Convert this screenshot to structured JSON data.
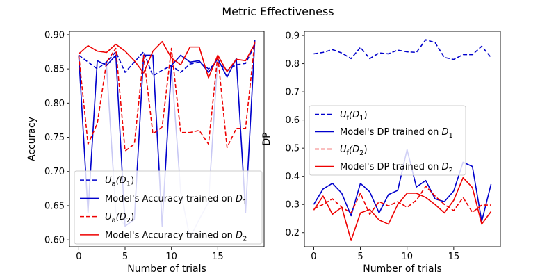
{
  "figure": {
    "title": "Metric Effectiveness"
  },
  "chart_data": [
    {
      "type": "line",
      "xlabel": "Number of trials",
      "ylabel": "Accuracy",
      "xlim": [
        -1,
        20
      ],
      "ylim": [
        0.59,
        0.905
      ],
      "xticks": [
        0,
        5,
        10,
        15
      ],
      "yticks": [
        0.6,
        0.65,
        0.7,
        0.75,
        0.8,
        0.85,
        0.9
      ],
      "ytick_decimals": 2,
      "x": [
        0,
        1,
        2,
        3,
        4,
        5,
        6,
        7,
        8,
        9,
        10,
        11,
        12,
        13,
        14,
        15,
        16,
        17,
        18,
        19
      ],
      "legend_position": "lower-right",
      "series": [
        {
          "name_main": "U",
          "name_sub": "a",
          "name_suffix": "(D",
          "name_suffix_sub": "1",
          "name_end": ")",
          "color": "#0000cc",
          "dash": true,
          "alpha": 1,
          "values": [
            0.87,
            0.86,
            0.85,
            0.86,
            0.875,
            0.845,
            0.86,
            0.875,
            0.84,
            0.848,
            0.855,
            0.845,
            0.857,
            0.86,
            0.85,
            0.86,
            0.848,
            0.856,
            0.858,
            0.885
          ]
        },
        {
          "name_main": "Model's Accuracy trained on ",
          "name_sub": "",
          "name_suffix": "D",
          "name_suffix_sub": "1",
          "name_end": "",
          "color": "#0000cc",
          "dash": false,
          "alpha": 1,
          "values": [
            0.87,
            0.64,
            0.862,
            0.855,
            0.87,
            0.62,
            0.63,
            0.87,
            0.87,
            0.62,
            0.855,
            0.87,
            0.86,
            0.862,
            0.845,
            0.865,
            0.838,
            0.865,
            0.64,
            0.892
          ]
        },
        {
          "name_main": "",
          "name_sub": "",
          "name_suffix": "",
          "name_suffix_sub": "",
          "name_end": "",
          "color": "#0000cc",
          "dash": false,
          "alpha": 0.22,
          "values": [
            0.87,
            0.64,
            0.862,
            0.855,
            0.64,
            0.62,
            0.63,
            0.87,
            0.87,
            0.63,
            0.855,
            0.67,
            0.603,
            0.63,
            0.655,
            0.865,
            0.838,
            0.865,
            0.643,
            0.892
          ]
        },
        {
          "name_main": "U",
          "name_sub": "a",
          "name_suffix": "(D",
          "name_suffix_sub": "2",
          "name_end": ")",
          "color": "#ee0000",
          "dash": true,
          "alpha": 1,
          "values": [
            0.87,
            0.74,
            0.77,
            0.86,
            0.88,
            0.73,
            0.74,
            0.87,
            0.755,
            0.765,
            0.88,
            0.757,
            0.757,
            0.76,
            0.74,
            0.87,
            0.735,
            0.763,
            0.763,
            0.89
          ]
        },
        {
          "name_main": "Model's Accuracy trained on ",
          "name_sub": "",
          "name_suffix": "D",
          "name_suffix_sub": "2",
          "name_end": "",
          "color": "#ee0000",
          "dash": false,
          "alpha": 1,
          "values": [
            0.872,
            0.884,
            0.876,
            0.874,
            0.886,
            0.876,
            0.862,
            0.844,
            0.876,
            0.89,
            0.866,
            0.856,
            0.882,
            0.882,
            0.837,
            0.87,
            0.846,
            0.864,
            0.862,
            0.887
          ]
        }
      ]
    },
    {
      "type": "line",
      "xlabel": "Number of trials",
      "ylabel": "DP",
      "xlim": [
        -1,
        20
      ],
      "ylim": [
        0.15,
        0.915
      ],
      "xticks": [
        0,
        5,
        10,
        15
      ],
      "yticks": [
        0.2,
        0.3,
        0.4,
        0.5,
        0.6,
        0.7,
        0.8,
        0.9
      ],
      "ytick_decimals": 1,
      "x": [
        0,
        1,
        2,
        3,
        4,
        5,
        6,
        7,
        8,
        9,
        10,
        11,
        12,
        13,
        14,
        15,
        16,
        17,
        18,
        19
      ],
      "legend_position": "center-left",
      "series": [
        {
          "name_main": "U",
          "name_sub": "f",
          "name_suffix": "(D",
          "name_suffix_sub": "1",
          "name_end": ")",
          "color": "#0000cc",
          "dash": true,
          "alpha": 1,
          "values": [
            0.835,
            0.84,
            0.85,
            0.838,
            0.818,
            0.858,
            0.818,
            0.838,
            0.835,
            0.848,
            0.842,
            0.84,
            0.885,
            0.875,
            0.822,
            0.815,
            0.832,
            0.832,
            0.862,
            0.822
          ]
        },
        {
          "name_main": "Model's DP trained on ",
          "name_sub": "",
          "name_suffix": "D",
          "name_suffix_sub": "1",
          "name_end": "",
          "color": "#0000cc",
          "dash": false,
          "alpha": 1,
          "values": [
            0.3,
            0.355,
            0.375,
            0.34,
            0.26,
            0.375,
            0.345,
            0.27,
            0.335,
            0.35,
            0.495,
            0.362,
            0.385,
            0.32,
            0.31,
            0.348,
            0.45,
            0.435,
            0.24,
            0.372
          ]
        },
        {
          "name_main": "U",
          "name_sub": "f",
          "name_suffix": "(D",
          "name_suffix_sub": "2",
          "name_end": ")",
          "color": "#ee0000",
          "dash": true,
          "alpha": 1,
          "values": [
            0.285,
            0.3,
            0.32,
            0.29,
            0.27,
            0.34,
            0.265,
            0.31,
            0.295,
            0.31,
            0.29,
            0.315,
            0.365,
            0.33,
            0.3,
            0.278,
            0.325,
            0.272,
            0.298,
            0.298
          ]
        },
        {
          "name_main": "Model's DP trained on ",
          "name_sub": "",
          "name_suffix": "D",
          "name_suffix_sub": "2",
          "name_end": "",
          "color": "#ee0000",
          "dash": false,
          "alpha": 1,
          "values": [
            0.28,
            0.33,
            0.265,
            0.29,
            0.172,
            0.27,
            0.282,
            0.245,
            0.23,
            0.3,
            0.34,
            0.34,
            0.325,
            0.3,
            0.27,
            0.315,
            0.395,
            0.36,
            0.23,
            0.275
          ]
        }
      ]
    }
  ]
}
